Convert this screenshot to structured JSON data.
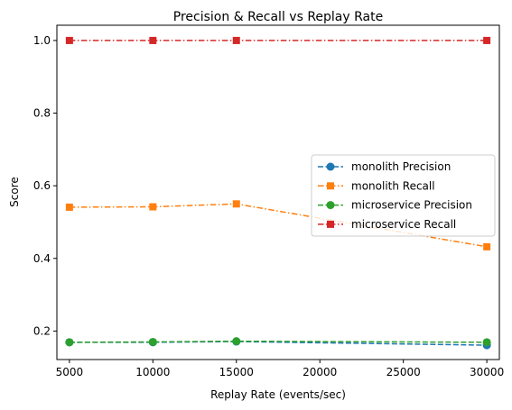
{
  "chart_data": {
    "type": "line",
    "title": "Precision & Recall vs Replay Rate",
    "xlabel": "Replay Rate (events/sec)",
    "ylabel": "Score",
    "x": [
      5000,
      10000,
      15000,
      30000
    ],
    "xlim": [
      4250,
      30750
    ],
    "ylim": [
      0.1215,
      1.042
    ],
    "xticks": [
      "5000",
      "10000",
      "15000",
      "20000",
      "25000",
      "30000"
    ],
    "yticks": [
      "0.2",
      "0.4",
      "0.6",
      "0.8",
      "1.0"
    ],
    "grid": false,
    "legend": "center-right",
    "series": [
      {
        "name": "monolith Precision",
        "values": [
          0.169,
          0.169,
          0.171,
          0.161
        ],
        "color": "#1f77b4",
        "marker": "circle",
        "dash": "dashed"
      },
      {
        "name": "monolith Recall",
        "values": [
          0.541,
          0.542,
          0.55,
          0.432
        ],
        "color": "#ff7f0e",
        "marker": "square",
        "dash": "dashdot"
      },
      {
        "name": "microservice Precision",
        "values": [
          0.169,
          0.17,
          0.172,
          0.169
        ],
        "color": "#2ca02c",
        "marker": "circle",
        "dash": "dashed"
      },
      {
        "name": "microservice Recall",
        "values": [
          1.0,
          1.0,
          1.0,
          1.0
        ],
        "color": "#d62728",
        "marker": "square",
        "dash": "dashdot"
      }
    ]
  }
}
